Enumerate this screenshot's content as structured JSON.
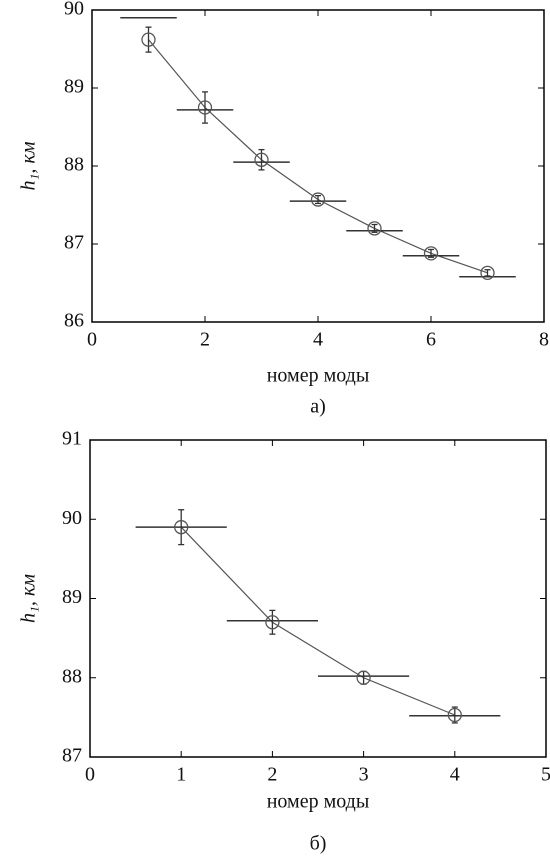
{
  "chart_data": [
    {
      "type": "errorbar",
      "xlabel": "номер моды",
      "ylabel": "h₁, км",
      "caption": "а)",
      "x": [
        1,
        2,
        3,
        4,
        5,
        6,
        7
      ],
      "series": [
        {
          "color": "#555555",
          "values": [
            89.62,
            88.75,
            88.08,
            87.57,
            87.2,
            86.88,
            86.63
          ],
          "yerr": [
            0.16,
            0.2,
            0.13,
            0.05,
            0.05,
            0.05,
            0.04
          ]
        },
        {
          "color": "#333333",
          "values": [
            89.9,
            88.72,
            88.05,
            87.55,
            87.17,
            86.85,
            86.58
          ],
          "xerr": [
            0.5,
            0.5,
            0.5,
            0.5,
            0.5,
            0.5,
            0.5
          ]
        }
      ],
      "xlim": [
        0,
        8
      ],
      "xticks": [
        0,
        2,
        4,
        6,
        8
      ],
      "ylim": [
        86,
        90
      ],
      "yticks": [
        86,
        87,
        88,
        89,
        90
      ],
      "grid": false
    },
    {
      "type": "errorbar",
      "xlabel": "номер моды",
      "ylabel": "h₁, км",
      "caption": "б)",
      "x": [
        1,
        2,
        3,
        4
      ],
      "series": [
        {
          "color": "#555555",
          "values": [
            89.9,
            88.7,
            88.0,
            87.53
          ],
          "yerr": [
            0.22,
            0.15,
            0.08,
            0.1
          ]
        },
        {
          "color": "#333333",
          "values": [
            89.9,
            88.72,
            88.02,
            87.52
          ],
          "xerr": [
            0.5,
            0.5,
            0.5,
            0.5
          ]
        }
      ],
      "xlim": [
        0,
        5
      ],
      "xticks": [
        0,
        1,
        2,
        3,
        4,
        5
      ],
      "ylim": [
        87,
        91
      ],
      "yticks": [
        87,
        88,
        89,
        90,
        91
      ],
      "grid": false
    }
  ]
}
